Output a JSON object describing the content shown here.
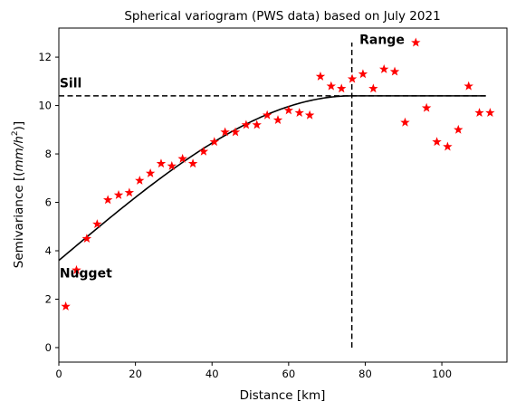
{
  "chart_data": {
    "type": "scatter",
    "title": "Spherical variogram (PWS data) based on July 2021",
    "xlabel": "Distance [km]",
    "ylabel_prefix": "Semivariance [(",
    "ylabel_unit": "mm/h",
    "ylabel_power": "2",
    "ylabel_suffix": ")]",
    "xlim": [
      0,
      117
    ],
    "ylim": [
      -0.6,
      13.2
    ],
    "xticks": [
      0,
      20,
      40,
      60,
      80,
      100
    ],
    "yticks": [
      0,
      2,
      4,
      6,
      8,
      10,
      12
    ],
    "grid": false,
    "series": [
      {
        "kind": "scatter",
        "marker": "star",
        "color": "#ff0000",
        "x": [
          1.8,
          4.6,
          7.3,
          10.0,
          12.8,
          15.6,
          18.4,
          21.1,
          23.9,
          26.7,
          29.5,
          32.3,
          35.0,
          37.8,
          40.6,
          43.4,
          46.1,
          48.9,
          51.7,
          54.4,
          57.2,
          60.0,
          62.8,
          65.5,
          68.3,
          71.1,
          73.8,
          76.6,
          79.4,
          82.1,
          84.9,
          87.7,
          90.4,
          93.2,
          96.0,
          98.7,
          101.5,
          104.3,
          107.0,
          109.8,
          112.6
        ],
        "y": [
          1.7,
          3.2,
          4.5,
          5.1,
          6.1,
          6.3,
          6.4,
          6.9,
          7.2,
          7.6,
          7.5,
          7.8,
          7.6,
          8.1,
          8.5,
          8.9,
          8.9,
          9.2,
          9.2,
          9.6,
          9.4,
          9.8,
          9.7,
          9.6,
          11.2,
          10.8,
          10.7,
          11.1,
          11.3,
          10.7,
          11.5,
          11.4,
          9.3,
          12.6,
          9.9,
          8.5,
          8.3,
          9.0,
          10.8,
          9.7,
          9.7
        ]
      },
      {
        "kind": "line",
        "model": "spherical",
        "color": "#000000",
        "nugget": 3.6,
        "sill": 10.4,
        "range": 76.5,
        "x_max": 111.5
      }
    ],
    "reference_lines": [
      {
        "orientation": "horizontal",
        "style": "dashed",
        "y": 10.4,
        "x_from": 0,
        "x_to": 111.5
      },
      {
        "orientation": "vertical",
        "style": "dashed",
        "x": 76.5,
        "y_from": 0,
        "y_to": 12.6
      }
    ],
    "annotations": [
      {
        "text": "Sill",
        "x": 0.2,
        "y": 10.75
      },
      {
        "text": "Nugget",
        "x": 0.2,
        "y": 2.9
      },
      {
        "text": "Range",
        "x": 78.5,
        "y": 12.55
      }
    ]
  }
}
